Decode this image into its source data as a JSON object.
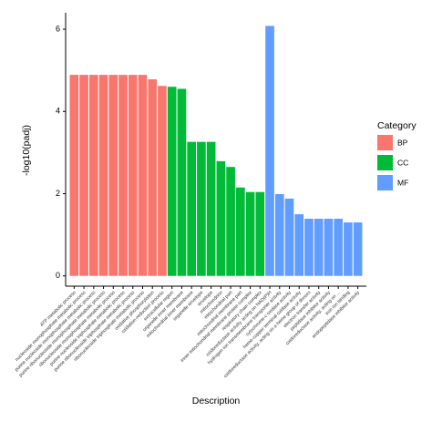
{
  "chart_data": {
    "type": "bar",
    "x_label": "Description",
    "y_label": "-log10(padj)",
    "legend_title": "Category",
    "categories": [
      "ATP metabolic process",
      "nucleoside monophosphate metabolic process",
      "purine nucleoside monophosphate metabolic process",
      "purine ribonucleoside monophosphate metabolic process",
      "ribonucleoside monophosphate metabolic process",
      "purine nucleoside triphosphate metabolic process",
      "purine ribonucleoside triphosphate metabolic process",
      "ribonucleoside triphosphate metabolic process",
      "oxidative phosphorylation",
      "oxidation-reduction process",
      "extracellular region",
      "organelle inner membrane",
      "mitochondrial inner membrane",
      "organelle envelope",
      "envelope",
      "mitochondrion",
      "mitochondrial part",
      "mitochondrial membrane part",
      "inner mitochondrial membrane protein complex",
      "respiratory chain complex",
      "oxidoreductase activity, acting on NAD(P)H",
      "hydrogen ion transmembrane transporter activity",
      "cytochrome-c oxidase activity",
      "heme-copper terminal oxidase activity",
      "oxidoreductase activity, acting on a heme group of donors",
      "electron transfer activity",
      "peptidase inhibitor activity",
      "oxidoreductase activity, acting on ...",
      "iron ion binding",
      "endopeptidase inhibitor activity"
    ],
    "series": [
      {
        "name": "BP",
        "color": "#F8766D",
        "values": [
          4.89,
          4.89,
          4.89,
          4.89,
          4.89,
          4.89,
          4.89,
          4.89,
          4.78,
          4.62,
          null,
          null,
          null,
          null,
          null,
          null,
          null,
          null,
          null,
          null,
          null,
          null,
          null,
          null,
          null,
          null,
          null,
          null,
          null,
          null
        ]
      },
      {
        "name": "CC",
        "color": "#00BA38",
        "values": [
          null,
          null,
          null,
          null,
          null,
          null,
          null,
          null,
          null,
          null,
          4.6,
          4.55,
          3.26,
          3.26,
          3.26,
          2.79,
          2.65,
          2.15,
          2.04,
          2.04,
          null,
          null,
          null,
          null,
          null,
          null,
          null,
          null,
          null,
          null
        ]
      },
      {
        "name": "MF",
        "color": "#619CFF",
        "values": [
          null,
          null,
          null,
          null,
          null,
          null,
          null,
          null,
          null,
          null,
          null,
          null,
          null,
          null,
          null,
          null,
          null,
          null,
          null,
          null,
          6.08,
          1.99,
          1.88,
          1.5,
          1.39,
          1.39,
          1.39,
          1.39,
          1.3,
          1.3
        ]
      }
    ],
    "ylim": [
      -0.25,
      6.4
    ],
    "yticks": [
      0,
      2,
      4,
      6
    ]
  }
}
